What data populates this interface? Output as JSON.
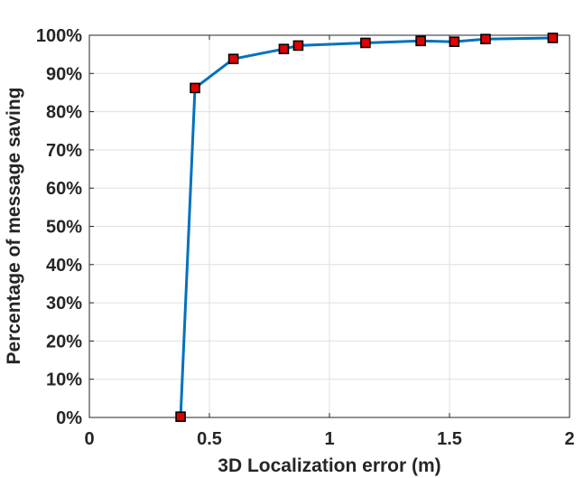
{
  "chart_data": {
    "type": "line",
    "title": "",
    "xlabel": "3D Localization error (m)",
    "ylabel": "Percentage of message saving",
    "xlim": [
      0,
      2
    ],
    "ylim": [
      0,
      100
    ],
    "x_ticks": [
      {
        "value": 0,
        "label": "0"
      },
      {
        "value": 0.5,
        "label": "0.5"
      },
      {
        "value": 1,
        "label": "1"
      },
      {
        "value": 1.5,
        "label": "1.5"
      },
      {
        "value": 2,
        "label": "2"
      }
    ],
    "y_ticks": [
      {
        "value": 0,
        "label": "0%"
      },
      {
        "value": 10,
        "label": "10%"
      },
      {
        "value": 20,
        "label": "20%"
      },
      {
        "value": 30,
        "label": "30%"
      },
      {
        "value": 40,
        "label": "40%"
      },
      {
        "value": 50,
        "label": "50%"
      },
      {
        "value": 60,
        "label": "60%"
      },
      {
        "value": 70,
        "label": "70%"
      },
      {
        "value": 80,
        "label": "80%"
      },
      {
        "value": 90,
        "label": "90%"
      },
      {
        "value": 100,
        "label": "100%"
      }
    ],
    "grid": true,
    "legend": "none",
    "series": [
      {
        "x": [
          0.38,
          0.44,
          0.6,
          0.81,
          0.87,
          1.15,
          1.38,
          1.52,
          1.65,
          1.93
        ],
        "y": [
          0.2,
          86.2,
          93.8,
          96.4,
          97.3,
          98.0,
          98.5,
          98.3,
          99.0,
          99.3
        ],
        "line_color": "#0072BD",
        "marker": "square",
        "marker_fill": "#E00000",
        "marker_edge": "#000000"
      }
    ]
  }
}
